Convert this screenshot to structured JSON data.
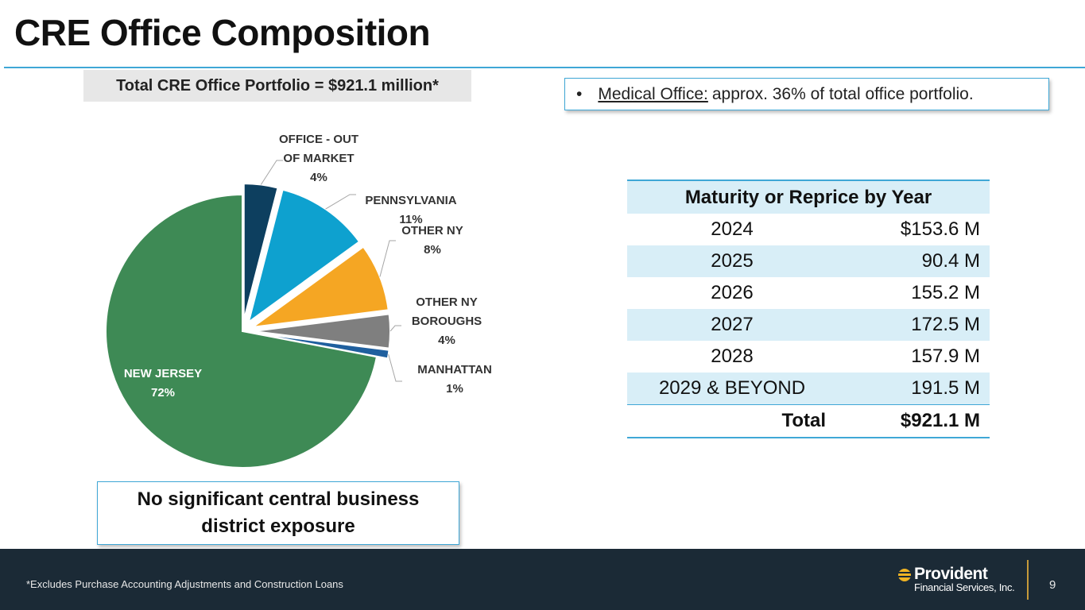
{
  "title": "CRE Office Composition",
  "portfolio_label": "Total CRE Office Portfolio = $921.1 million*",
  "medical_note": {
    "bullet": "•",
    "label": "Medical Office:",
    "text": "approx. 36% of total office portfolio."
  },
  "chart_data": {
    "type": "pie",
    "title": "",
    "slices": [
      {
        "name": "OFFICE - OUT OF MARKET",
        "label_lines": [
          "OFFICE - OUT",
          "OF MARKET"
        ],
        "value": 4,
        "pct_label": "4%",
        "color": "#0d3f5f",
        "exploded": true
      },
      {
        "name": "PENNSYLVANIA",
        "label_lines": [
          "PENNSYLVANIA"
        ],
        "value": 11,
        "pct_label": "11%",
        "color": "#0ea1cf",
        "exploded": true
      },
      {
        "name": "OTHER NY",
        "label_lines": [
          "OTHER NY"
        ],
        "value": 8,
        "pct_label": "8%",
        "color": "#f5a623",
        "exploded": true
      },
      {
        "name": "OTHER NY BOROUGHS",
        "label_lines": [
          "OTHER NY",
          "BOROUGHS"
        ],
        "value": 4,
        "pct_label": "4%",
        "color": "#7f7f7f",
        "exploded": true
      },
      {
        "name": "MANHATTAN",
        "label_lines": [
          "MANHATTAN"
        ],
        "value": 1,
        "pct_label": "1%",
        "color": "#1f5f9e",
        "exploded": true
      },
      {
        "name": "NEW JERSEY",
        "label_lines": [
          "NEW JERSEY"
        ],
        "value": 72,
        "pct_label": "72%",
        "color": "#3e8a55",
        "exploded": false
      }
    ]
  },
  "cbd_note": {
    "line1": "No significant central business",
    "line2": "district exposure"
  },
  "maturity_table": {
    "header": "Maturity or Reprice by Year",
    "rows": [
      {
        "year": "2024",
        "amount": "$153.6 M"
      },
      {
        "year": "2025",
        "amount": "90.4 M"
      },
      {
        "year": "2026",
        "amount": "155.2 M"
      },
      {
        "year": "2027",
        "amount": "172.5 M"
      },
      {
        "year": "2028",
        "amount": "157.9 M"
      },
      {
        "year": "2029 & BEYOND",
        "amount": "191.5 M"
      }
    ],
    "total_label": "Total",
    "total_amount": "$921.1 M"
  },
  "footer": {
    "footnote": "*Excludes Purchase Accounting Adjustments and Construction Loans",
    "logo_name": "Provident",
    "logo_sub": "Financial Services, Inc.",
    "page_number": "9"
  },
  "colors": {
    "accent": "#3fa7d6",
    "footer_bg": "#1b2a36",
    "table_shade": "#d8eef7",
    "logo_gold": "#f0b323"
  }
}
